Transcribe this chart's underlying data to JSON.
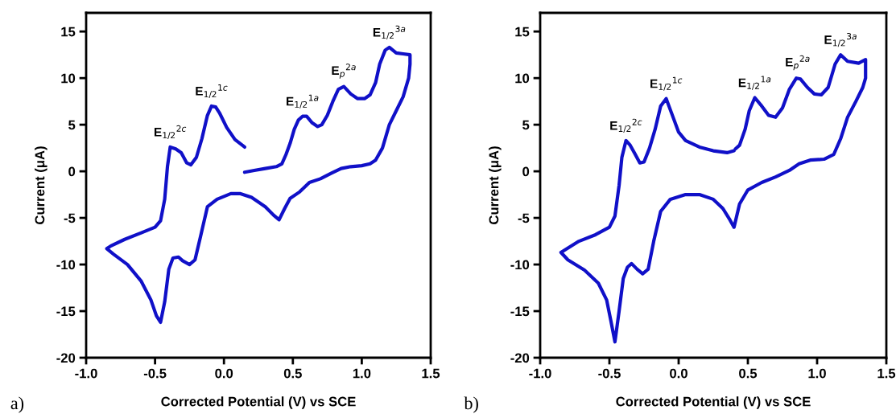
{
  "chart_data": [
    {
      "type": "line",
      "xlabel": "Corrected Potential (V) vs SCE",
      "ylabel": "Current (μA)",
      "xlim": [
        -1.0,
        1.5
      ],
      "ylim": [
        -20,
        17
      ],
      "xticks": [
        {
          "value": -1.0,
          "label": "-1.0"
        },
        {
          "value": -0.5,
          "label": "-0.5"
        },
        {
          "value": 0.0,
          "label": "0.0"
        },
        {
          "value": 0.5,
          "label": "0.5"
        },
        {
          "value": 1.0,
          "label": "1.0"
        },
        {
          "value": 1.5,
          "label": "1.5"
        }
      ],
      "yticks": [
        -20,
        -15,
        -10,
        -5,
        0,
        5,
        10,
        15
      ],
      "grid": false,
      "legend": false,
      "marker": "none",
      "line_style": "solid",
      "series": [
        {
          "color": "#1010c8",
          "x": [
            0.15,
            0.08,
            0.02,
            -0.03,
            -0.06,
            -0.09,
            -0.12,
            -0.16,
            -0.2,
            -0.24,
            -0.27,
            -0.31,
            -0.35,
            -0.39,
            -0.41,
            -0.43,
            -0.46,
            -0.5,
            -0.6,
            -0.72,
            -0.82,
            -0.85,
            -0.8,
            -0.7,
            -0.6,
            -0.53,
            -0.49,
            -0.46,
            -0.43,
            -0.4,
            -0.37,
            -0.33,
            -0.3,
            -0.25,
            -0.21,
            -0.17,
            -0.12,
            -0.05,
            0.05,
            0.12,
            0.2,
            0.3,
            0.36,
            0.4,
            0.44,
            0.48,
            0.55,
            0.62,
            0.7,
            0.78,
            0.85,
            0.92,
            1.0,
            1.06,
            1.1,
            1.15,
            1.2,
            1.25,
            1.3,
            1.34,
            1.35,
            1.35,
            1.3,
            1.25,
            1.2,
            1.17,
            1.13,
            1.1,
            1.06,
            1.02,
            0.97,
            0.92,
            0.87,
            0.83,
            0.79,
            0.75,
            0.71,
            0.68,
            0.64,
            0.6,
            0.57,
            0.54,
            0.51,
            0.48,
            0.45,
            0.42,
            0.38,
            0.3,
            0.22,
            0.15
          ],
          "values": [
            2.6,
            3.4,
            4.7,
            6.2,
            6.9,
            7.0,
            6.0,
            3.5,
            1.5,
            0.7,
            0.9,
            2.0,
            2.4,
            2.6,
            0.5,
            -3.0,
            -5.3,
            -6.0,
            -6.6,
            -7.3,
            -8.0,
            -8.3,
            -8.9,
            -10.0,
            -11.8,
            -13.8,
            -15.5,
            -16.2,
            -14.0,
            -10.5,
            -9.3,
            -9.2,
            -9.6,
            -10.0,
            -9.5,
            -7.0,
            -3.8,
            -3.0,
            -2.4,
            -2.4,
            -2.8,
            -3.8,
            -4.7,
            -5.2,
            -4.0,
            -2.9,
            -2.2,
            -1.2,
            -0.8,
            -0.2,
            0.3,
            0.5,
            0.6,
            0.8,
            1.2,
            2.5,
            5.0,
            6.5,
            8.0,
            10.0,
            11.5,
            12.5,
            12.6,
            12.7,
            13.3,
            13.0,
            11.5,
            9.5,
            8.2,
            7.8,
            7.8,
            8.3,
            9.1,
            8.8,
            7.5,
            6.0,
            5.0,
            4.8,
            5.2,
            5.9,
            5.9,
            5.5,
            4.5,
            3.0,
            1.8,
            0.8,
            0.5,
            0.3,
            0.1,
            -0.1
          ]
        }
      ],
      "annotations": [
        {
          "text": "E$_{1/2}$$^{2c}$",
          "x": -0.39,
          "y": 2.6
        },
        {
          "text": "E$_{1/2}$$^{1c}$",
          "x": -0.09,
          "y": 7.0
        },
        {
          "text": "E$_{1/2}$$^{1a}$",
          "x": 0.57,
          "y": 5.9
        },
        {
          "text": "E$_{p}$$^{2a}$",
          "x": 0.87,
          "y": 9.1
        },
        {
          "text": "E$_{1/2}$$^{3a}$",
          "x": 1.2,
          "y": 13.3
        },
        "a)"
      ]
    },
    {
      "type": "line",
      "xlabel": "Corrected Potential (V) vs SCE",
      "ylabel": "Current (μA)",
      "xlim": [
        -1.0,
        1.5
      ],
      "ylim": [
        -20,
        17
      ],
      "xticks": [
        {
          "value": -1.0,
          "label": "-1.0"
        },
        {
          "value": -0.5,
          "label": "-0.5"
        },
        {
          "value": 0.0,
          "label": "0.0"
        },
        {
          "value": 0.5,
          "label": "0.5"
        },
        {
          "value": 1.0,
          "label": "1.0"
        },
        {
          "value": 1.5,
          "label": "1.5"
        }
      ],
      "yticks": [
        -20,
        -15,
        -10,
        -5,
        0,
        5,
        10,
        15
      ],
      "grid": false,
      "legend": false,
      "marker": "none",
      "line_style": "solid",
      "series": [
        {
          "color": "#1010c8",
          "x": [
            0.4,
            0.35,
            0.25,
            0.15,
            0.05,
            0.0,
            -0.04,
            -0.09,
            -0.13,
            -0.17,
            -0.21,
            -0.25,
            -0.28,
            -0.32,
            -0.35,
            -0.38,
            -0.41,
            -0.43,
            -0.46,
            -0.5,
            -0.6,
            -0.72,
            -0.85,
            -0.8,
            -0.68,
            -0.58,
            -0.52,
            -0.49,
            -0.46,
            -0.43,
            -0.4,
            -0.37,
            -0.34,
            -0.3,
            -0.26,
            -0.22,
            -0.18,
            -0.13,
            -0.06,
            0.05,
            0.15,
            0.25,
            0.32,
            0.37,
            0.4,
            0.44,
            0.5,
            0.6,
            0.7,
            0.8,
            0.87,
            0.95,
            1.05,
            1.12,
            1.17,
            1.22,
            1.28,
            1.33,
            1.35,
            1.35,
            1.3,
            1.22,
            1.17,
            1.13,
            1.08,
            1.03,
            0.98,
            0.93,
            0.88,
            0.85,
            0.8,
            0.75,
            0.7,
            0.65,
            0.6,
            0.55,
            0.51,
            0.48,
            0.44,
            0.41
          ],
          "values": [
            2.2,
            2.0,
            2.2,
            2.6,
            3.3,
            4.2,
            5.8,
            7.8,
            7.0,
            4.5,
            2.5,
            1.0,
            0.9,
            2.0,
            2.8,
            3.3,
            1.5,
            -1.5,
            -4.8,
            -6.0,
            -6.8,
            -7.5,
            -8.7,
            -9.5,
            -10.6,
            -12.0,
            -13.8,
            -16.0,
            -18.3,
            -15.0,
            -11.5,
            -10.3,
            -9.9,
            -10.5,
            -11.0,
            -10.5,
            -7.5,
            -4.3,
            -3.0,
            -2.5,
            -2.5,
            -3.0,
            -4.0,
            -5.2,
            -6.0,
            -3.5,
            -2.0,
            -1.2,
            -0.6,
            0.1,
            0.8,
            1.2,
            1.3,
            1.8,
            3.5,
            5.8,
            7.5,
            9.0,
            10.0,
            12.0,
            11.6,
            11.8,
            12.5,
            11.5,
            9.0,
            8.2,
            8.3,
            9.0,
            9.9,
            10.0,
            8.8,
            6.8,
            5.8,
            6.0,
            7.0,
            7.9,
            6.5,
            4.5,
            2.8,
            2.4
          ]
        }
      ],
      "annotations": [
        {
          "text": "E$_{1/2}$$^{2c}$",
          "x": -0.38,
          "y": 3.3
        },
        {
          "text": "E$_{1/2}$$^{1c}$",
          "x": -0.09,
          "y": 7.8
        },
        {
          "text": "E$_{1/2}$$^{1a}$",
          "x": 0.55,
          "y": 7.9
        },
        {
          "text": "E$_{p}$$^{2a}$",
          "x": 0.86,
          "y": 10.0
        },
        {
          "text": "E$_{1/2}$$^{3a}$",
          "x": 1.17,
          "y": 12.5
        },
        "b)"
      ]
    }
  ]
}
